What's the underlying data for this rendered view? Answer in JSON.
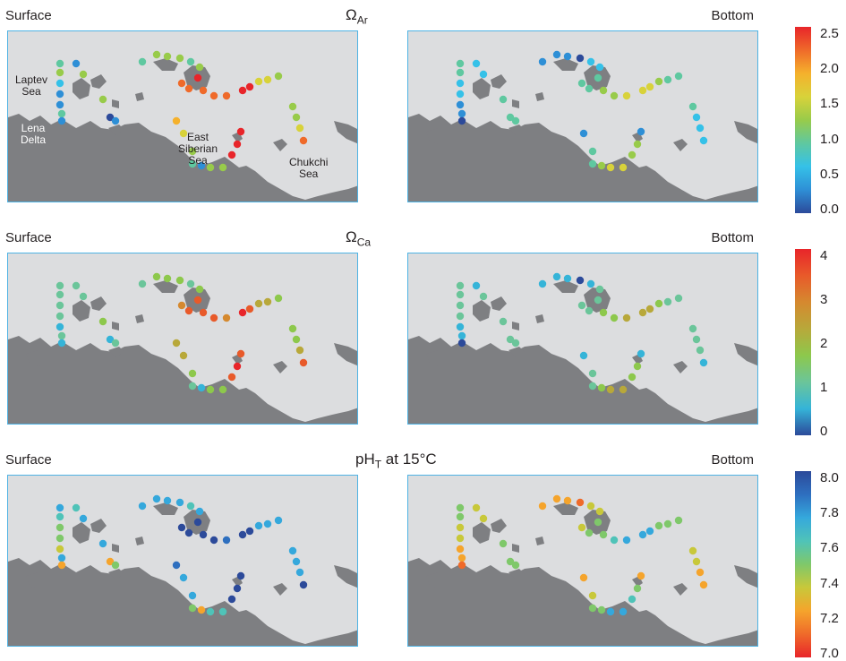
{
  "rows": [
    {
      "label_left": "Surface",
      "label_right": "Bottom",
      "var_main": "Ω",
      "var_sub": "Ar",
      "var_suffix": "",
      "ticks": [
        "2.5",
        "2.0",
        "1.5",
        "1.0",
        "0.5",
        "0.0"
      ],
      "colors": [
        "#2c4a9a",
        "#2e8fd6",
        "#35c1e8",
        "#5fc8a0",
        "#98cb4a",
        "#d8d23a",
        "#f5b12c",
        "#ef6a2a",
        "#e8252a"
      ]
    },
    {
      "label_left": "Surface",
      "label_right": "Bottom",
      "var_main": "Ω",
      "var_sub": "Ca",
      "var_suffix": "",
      "ticks": [
        "4",
        "3",
        "2",
        "1",
        "0"
      ],
      "colors": [
        "#2c4a9a",
        "#35b4d8",
        "#6bc59a",
        "#8dc84c",
        "#b8a83a",
        "#d5892f",
        "#e85a2a",
        "#e8252a"
      ]
    },
    {
      "label_left": "Surface",
      "label_right": "Bottom",
      "var_main": "pH",
      "var_sub": "T",
      "var_suffix": " at 15°C",
      "ticks": [
        "8.0",
        "7.8",
        "7.6",
        "7.4",
        "7.2",
        "7.0"
      ],
      "colors": [
        "#e8252a",
        "#ef6a2a",
        "#f5a42c",
        "#c8c83a",
        "#7fc86a",
        "#4fc3b8",
        "#35a8dc",
        "#2e6fbf",
        "#2c4a9a"
      ]
    }
  ],
  "regions": [
    {
      "name": "laptev",
      "lines": [
        "Laptev",
        "Sea"
      ]
    },
    {
      "name": "lena",
      "lines": [
        "Lena",
        "Delta"
      ]
    },
    {
      "name": "east-siberian",
      "lines": [
        "East",
        "Siberian",
        "Sea"
      ]
    },
    {
      "name": "chukchi",
      "lines": [
        "Chukchi",
        "Sea"
      ]
    }
  ],
  "chart_data": [
    {
      "type": "scatter",
      "title": "ΩAr",
      "panels": [
        "Surface",
        "Bottom"
      ],
      "colorbar": {
        "min": 0.0,
        "max": 2.5,
        "ticks": [
          0.0,
          0.5,
          1.0,
          1.5,
          2.0,
          2.5
        ]
      },
      "values": {
        "surface": {
          "stations": [
            1.0,
            1.1,
            0.5,
            0.4,
            0.3,
            1.0,
            0.2,
            0.3,
            1.1,
            1.2,
            0.1,
            0.3,
            0.9,
            1.1,
            1.2,
            1.3,
            1.0,
            1.2,
            2.2,
            2.3,
            2.4,
            2.3,
            2.2,
            2.1,
            2.5,
            2.4,
            1.7,
            1.5,
            1.3,
            1.4,
            1.2,
            1.6,
            2.3,
            2.4,
            2.5,
            2.4,
            1.2,
            1.1,
            0.4,
            0.8,
            1.3,
            1.6,
            1.8
          ]
        },
        "bottom": {
          "stations": [
            0.9,
            0.8,
            0.7,
            0.6,
            0.4,
            0.2,
            0.1,
            0.5,
            0.6,
            0.9,
            1.0,
            0.9,
            0.4,
            0.3,
            0.2,
            0.1,
            0.5,
            0.6,
            0.8,
            0.9,
            1.0,
            1.1,
            1.3,
            1.5,
            1.6,
            1.7,
            1.2,
            1.0,
            0.9,
            0.8,
            0.7,
            0.6,
            0.5,
            0.4,
            1.1,
            1.3,
            1.5,
            1.6,
            1.2,
            1.0,
            0.8,
            0.3
          ]
        }
      }
    },
    {
      "type": "scatter",
      "title": "ΩCa",
      "panels": [
        "Surface",
        "Bottom"
      ],
      "colorbar": {
        "min": 0,
        "max": 4.5,
        "ticks": [
          0,
          1,
          2,
          3,
          4
        ]
      },
      "values": {
        "surface": {
          "stations": [
            1.5,
            1.6,
            1.3,
            1.1,
            0.8,
            1.6,
            0.6,
            1.0,
            1.5,
            1.8,
            0.4,
            1.0,
            1.5,
            1.8,
            2.0,
            2.2,
            1.6,
            1.9,
            3.5,
            3.7,
            3.9,
            3.8,
            3.6,
            3.4,
            4.2,
            4.0,
            2.6,
            2.4,
            2.1,
            2.2,
            1.9,
            2.6,
            3.7,
            3.9,
            4.2,
            4.0,
            1.9,
            1.7,
            0.8,
            1.4,
            2.2,
            2.5,
            2.8
          ]
        },
        "bottom": {
          "stations": [
            1.4,
            1.3,
            1.2,
            1.0,
            0.8,
            0.5,
            0.3,
            0.9,
            1.0,
            1.4,
            1.6,
            1.5,
            0.7,
            0.5,
            0.4,
            0.3,
            0.9,
            1.0,
            1.3,
            1.5,
            1.6,
            1.8,
            2.1,
            2.3,
            2.5,
            2.7,
            1.9,
            1.6,
            1.4,
            1.3,
            1.2,
            1.0,
            0.9,
            0.8,
            1.8,
            2.1,
            2.4,
            2.5,
            1.9,
            1.6,
            1.3,
            0.6
          ]
        }
      }
    },
    {
      "type": "scatter",
      "title": "pHT at 15°C",
      "panels": [
        "Surface",
        "Bottom"
      ],
      "colorbar": {
        "min": 7.0,
        "max": 8.0,
        "ticks": [
          7.0,
          7.2,
          7.4,
          7.6,
          7.8,
          8.0
        ]
      },
      "values": {
        "surface": {
          "stations": [
            7.7,
            7.6,
            7.5,
            7.5,
            7.4,
            7.7,
            7.3,
            7.6,
            7.7,
            7.8,
            7.2,
            7.5,
            7.7,
            7.8,
            7.8,
            7.8,
            7.6,
            7.8,
            7.95,
            7.95,
            8.0,
            7.95,
            7.95,
            7.9,
            8.0,
            7.95,
            7.8,
            7.8,
            7.8,
            7.8,
            7.7,
            7.8,
            7.95,
            7.95,
            8.0,
            7.95,
            7.6,
            7.6,
            7.3,
            7.5,
            7.8,
            7.8,
            7.9
          ]
        },
        "bottom": {
          "stations": [
            7.5,
            7.5,
            7.4,
            7.4,
            7.3,
            7.2,
            7.1,
            7.4,
            7.4,
            7.5,
            7.5,
            7.5,
            7.3,
            7.3,
            7.2,
            7.1,
            7.4,
            7.4,
            7.4,
            7.5,
            7.5,
            7.5,
            7.6,
            7.7,
            7.8,
            7.8,
            7.5,
            7.5,
            7.5,
            7.4,
            7.4,
            7.3,
            7.3,
            7.3,
            7.5,
            7.6,
            7.7,
            7.8,
            7.5,
            7.5,
            7.4,
            7.2
          ]
        }
      }
    }
  ]
}
